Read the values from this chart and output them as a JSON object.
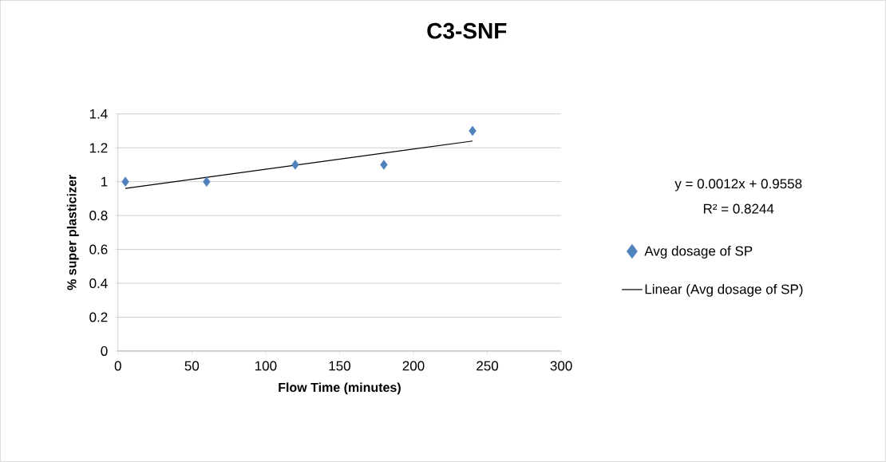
{
  "chart_data": {
    "type": "scatter",
    "title": "C3-SNF",
    "xlabel": "Flow Time (minutes)",
    "ylabel": "% super plasticizer",
    "xlim": [
      0,
      300
    ],
    "xticks": [
      0,
      50,
      100,
      150,
      200,
      250,
      300
    ],
    "ylim": [
      0,
      1.4
    ],
    "yticks": [
      0,
      0.2,
      0.4,
      0.6,
      0.8,
      1,
      1.2,
      1.4
    ],
    "grid": "y",
    "legend": "right",
    "series": [
      {
        "name": "Avg dosage of SP",
        "marker": "diamond",
        "color": "#4f81bd",
        "x": [
          5,
          60,
          120,
          180,
          240
        ],
        "values": [
          1,
          1,
          1.1,
          1.1,
          1.3
        ]
      },
      {
        "name": "Linear (Avg dosage of SP)",
        "type": "line",
        "color": "#000000",
        "line_style": "solid",
        "x": [
          5,
          240
        ],
        "values": [
          0.96,
          1.24
        ]
      }
    ],
    "annotations": [
      "y = 0.0012x + 0.9558",
      "R² = 0.8244"
    ]
  }
}
